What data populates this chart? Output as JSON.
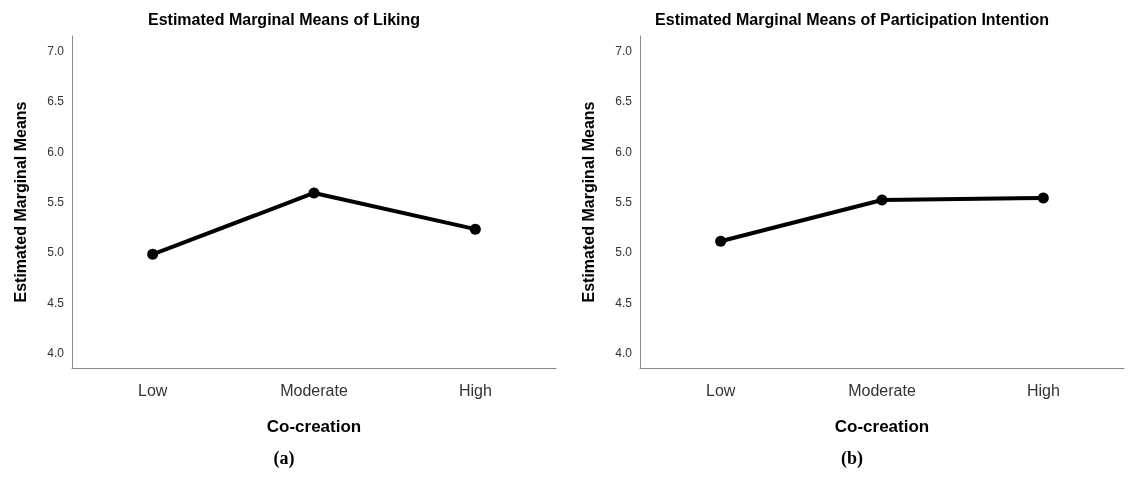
{
  "chart_data": [
    {
      "type": "line",
      "title": "Estimated Marginal Means of Liking",
      "xlabel": "Co-creation",
      "ylabel": "Estimated Marginal Means",
      "categories": [
        "Low",
        "Moderate",
        "High"
      ],
      "series": [
        {
          "color": "#000000",
          "values": [
            4.98,
            5.59,
            5.23
          ]
        }
      ],
      "ylim": [
        3.85,
        7.15
      ],
      "yticks": [
        {
          "value": 4,
          "label": "4.0"
        },
        {
          "value": 4.5,
          "label": "4.5"
        },
        {
          "value": 5,
          "label": "5.0"
        },
        {
          "value": 5.5,
          "label": "5.5"
        },
        {
          "value": 6,
          "label": "6.0"
        },
        {
          "value": 6.5,
          "label": "6.5"
        },
        {
          "value": 7,
          "label": "7.0"
        }
      ],
      "grid": false,
      "marker": "circle",
      "line_style": "solid",
      "annotations": [
        "(a)"
      ]
    },
    {
      "type": "line",
      "title": "Estimated Marginal Means of Participation Intention",
      "xlabel": "Co-creation",
      "ylabel": "Estimated Marginal Means",
      "categories": [
        "Low",
        "Moderate",
        "High"
      ],
      "series": [
        {
          "color": "#000000",
          "values": [
            5.11,
            5.52,
            5.54
          ]
        }
      ],
      "ylim": [
        3.85,
        7.15
      ],
      "yticks": [
        {
          "value": 4,
          "label": "4.0"
        },
        {
          "value": 4.5,
          "label": "4.5"
        },
        {
          "value": 5,
          "label": "5.0"
        },
        {
          "value": 5.5,
          "label": "5.5"
        },
        {
          "value": 6,
          "label": "6.0"
        },
        {
          "value": 6.5,
          "label": "6.5"
        },
        {
          "value": 7,
          "label": "7.0"
        }
      ],
      "grid": false,
      "marker": "circle",
      "line_style": "solid",
      "annotations": [
        "(b)"
      ]
    }
  ]
}
